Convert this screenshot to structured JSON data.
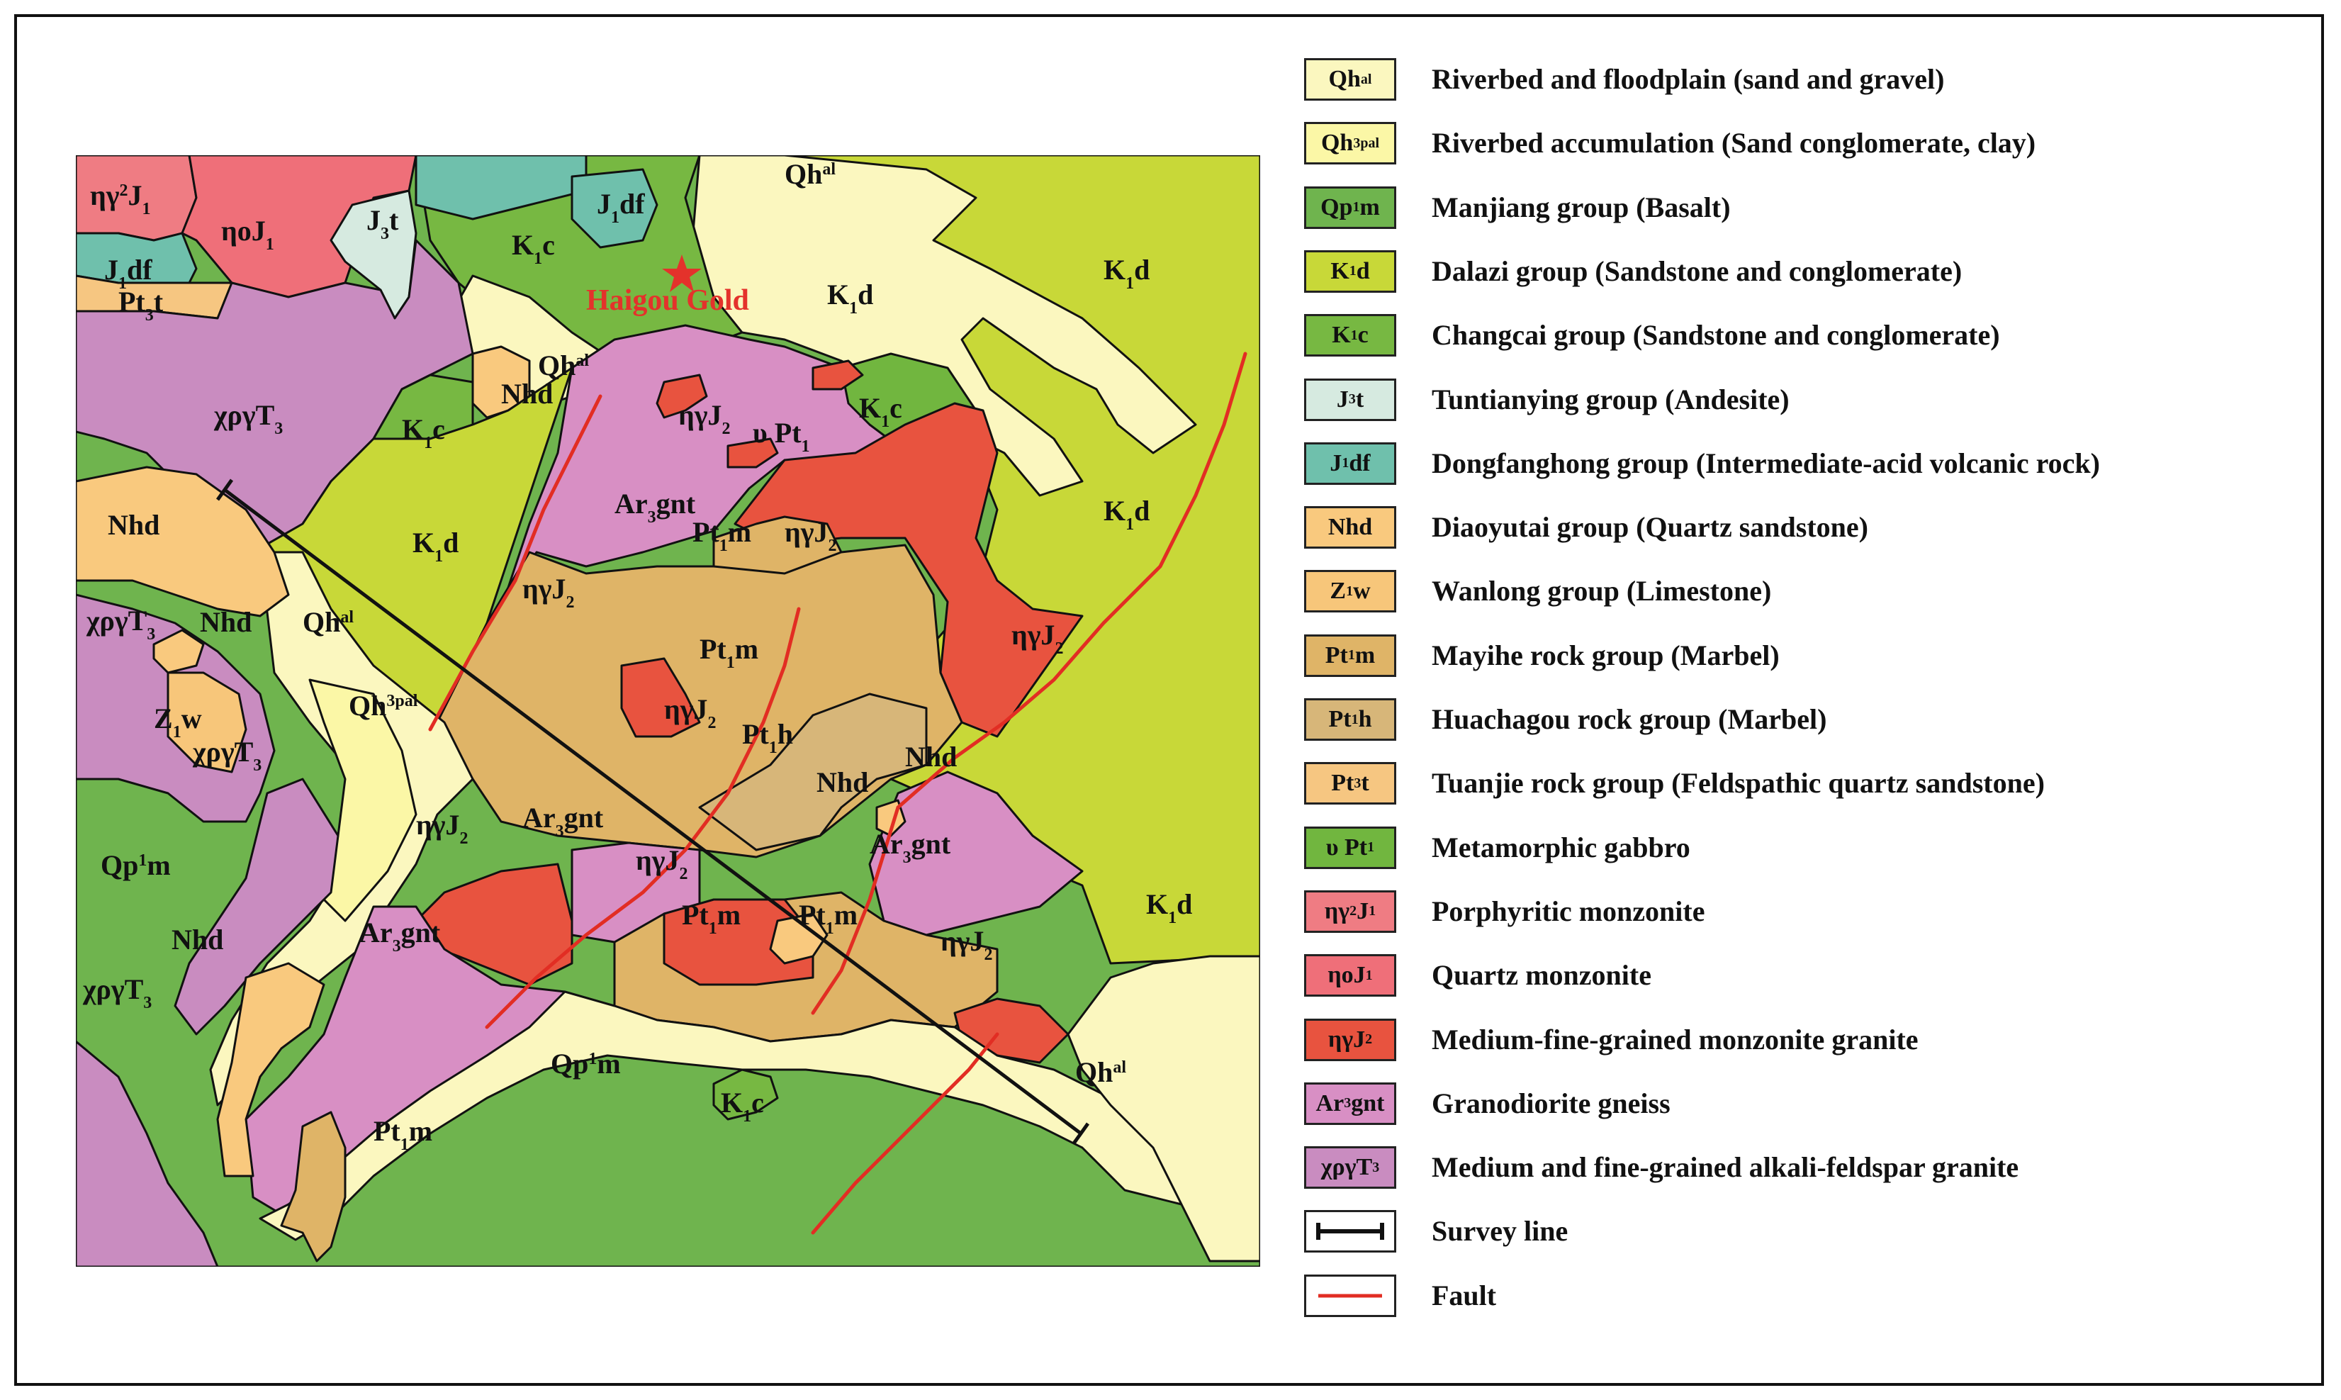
{
  "colors": {
    "Qhal": "#fbf7bf",
    "Qh3pal": "#fbf7a6",
    "Qp1m": "#6fb44e",
    "K1d": "#c8d838",
    "K1c": "#77b842",
    "J3t": "#d6eae0",
    "J1df": "#6fc0ac",
    "Nhd": "#f9c97e",
    "Z1w": "#f7c67a",
    "Pt1m": "#dfb467",
    "Pt1h": "#d7b679",
    "Pt3t": "#f6c681",
    "uPt1": "#71b63f",
    "ng2J1": "#ef7c83",
    "noJ1": "#ef6f79",
    "ngJ2": "#e8533f",
    "Ar3gnt": "#d88fc4",
    "xpgT3": "#c98cc0",
    "survey": "#111111",
    "fault": "#e22d23",
    "star": "#e4322b"
  },
  "map": {
    "mine_label": "Haigou Gold",
    "labels": [
      {
        "key": "ng2J1_a",
        "base": "ηγ",
        "sup": "2",
        "rest": "J",
        "sub": "1"
      },
      {
        "key": "noJ1_a",
        "base": "ηoJ",
        "sub": "1"
      },
      {
        "key": "J3t_a",
        "base": "J",
        "sub": "3",
        "rest": "t"
      },
      {
        "key": "K1c_a",
        "base": "K",
        "sub": "1",
        "rest": "c"
      },
      {
        "key": "J1df_a",
        "base": "J",
        "sub": "1",
        "rest": "df"
      },
      {
        "key": "Qhal_a",
        "base": "Qh",
        "sup": "al"
      },
      {
        "key": "J1df_b",
        "base": "J",
        "sub": "1",
        "rest": "df"
      },
      {
        "key": "Pt3t_a",
        "base": "Pt",
        "sub": "3",
        "rest": "t"
      },
      {
        "key": "K1d_a",
        "base": "K",
        "sub": "1",
        "rest": "d"
      },
      {
        "key": "K1d_b",
        "base": "K",
        "sub": "1",
        "rest": "d"
      },
      {
        "key": "Qhal_b",
        "base": "Qh",
        "sup": "al"
      },
      {
        "key": "xpgT3_a",
        "base": "χργT",
        "sub": "3"
      },
      {
        "key": "K1c_b",
        "base": "K",
        "sub": "1",
        "rest": "c"
      },
      {
        "key": "Nhd_a",
        "base": "Nhd"
      },
      {
        "key": "ngJ2_a",
        "base": "ηγJ",
        "sub": "2"
      },
      {
        "key": "uPt1_a",
        "base": "υ Pt",
        "sub": "1"
      },
      {
        "key": "K1c_c",
        "base": "K",
        "sub": "1",
        "rest": "c"
      },
      {
        "key": "Nhd_b",
        "base": "Nhd"
      },
      {
        "key": "Ar3gnt_a",
        "base": "Ar",
        "sub": "3",
        "rest": "gnt"
      },
      {
        "key": "Pt1m_a",
        "base": "Pt",
        "sub": "1",
        "rest": "m"
      },
      {
        "key": "ngJ2_b",
        "base": "ηγJ",
        "sub": "2"
      },
      {
        "key": "K1d_c",
        "base": "K",
        "sub": "1",
        "rest": "d"
      },
      {
        "key": "K1d_d",
        "base": "K",
        "sub": "1",
        "rest": "d"
      },
      {
        "key": "xpgT3_b",
        "base": "χργT",
        "sub": "3"
      },
      {
        "key": "Nhd_c",
        "base": "Nhd"
      },
      {
        "key": "Qhal_c",
        "base": "Qh",
        "sup": "al"
      },
      {
        "key": "ngJ2_c",
        "base": "ηγJ",
        "sub": "2"
      },
      {
        "key": "Pt1m_b",
        "base": "Pt",
        "sub": "1",
        "rest": "m"
      },
      {
        "key": "ngJ2_d",
        "base": "ηγJ",
        "sub": "2"
      },
      {
        "key": "Z1w_a",
        "base": "Z",
        "sub": "1",
        "rest": "w"
      },
      {
        "key": "Qh3pal_a",
        "base": "Qh",
        "sup": "3pal"
      },
      {
        "key": "xpgT3_c",
        "base": "χργT",
        "sub": "3"
      },
      {
        "key": "ngJ2_e",
        "base": "ηγJ",
        "sub": "2"
      },
      {
        "key": "Pt1h_a",
        "base": "Pt",
        "sub": "1",
        "rest": "h"
      },
      {
        "key": "Nhd_d",
        "base": "Nhd"
      },
      {
        "key": "ngJ2_f",
        "base": "ηγJ",
        "sub": "2"
      },
      {
        "key": "Ar3gnt_b",
        "base": "Ar",
        "sub": "3",
        "rest": "gnt"
      },
      {
        "key": "Nhd_e",
        "base": "Nhd"
      },
      {
        "key": "Ar3gnt_c",
        "base": "Ar",
        "sub": "3",
        "rest": "gnt"
      },
      {
        "key": "Qp1m_a",
        "base": "Qp",
        "sup": "1",
        "rest": "m"
      },
      {
        "key": "ngJ2_g",
        "base": "ηγJ",
        "sub": "2"
      },
      {
        "key": "Pt1m_c",
        "base": "Pt",
        "sub": "1",
        "rest": "m"
      },
      {
        "key": "Pt1m_d",
        "base": "Pt",
        "sub": "1",
        "rest": "m"
      },
      {
        "key": "K1d_e",
        "base": "K",
        "sub": "1",
        "rest": "d"
      },
      {
        "key": "Nhd_f",
        "base": "Nhd"
      },
      {
        "key": "Ar3gnt_d",
        "base": "Ar",
        "sub": "3",
        "rest": "gnt"
      },
      {
        "key": "ngJ2_h",
        "base": "ηγJ",
        "sub": "2"
      },
      {
        "key": "xpgT3_d",
        "base": "χργT",
        "sub": "3"
      },
      {
        "key": "Qp1m_b",
        "base": "Qp",
        "sup": "1",
        "rest": "m"
      },
      {
        "key": "K1c_d",
        "base": "K",
        "sub": "1",
        "rest": "c"
      },
      {
        "key": "Qhal_d",
        "base": "Qh",
        "sup": "al"
      },
      {
        "key": "Pt1m_e",
        "base": "Pt",
        "sub": "1",
        "rest": "m"
      }
    ]
  },
  "legend": [
    {
      "code": "Qhal",
      "sym": {
        "base": "Qh",
        "sup": "al"
      },
      "text": "Riverbed and floodplain (sand and gravel)"
    },
    {
      "code": "Qh3pal",
      "sym": {
        "base": "Qh",
        "sup": "3pal"
      },
      "text": "Riverbed accumulation (Sand conglomerate, clay)"
    },
    {
      "code": "Qp1m",
      "sym": {
        "base": "Qp",
        "sup": "1",
        "rest": "m"
      },
      "text": "Manjiang group (Basalt)"
    },
    {
      "code": "K1d",
      "sym": {
        "base": "K",
        "sub": "1",
        "rest": "d"
      },
      "text": "Dalazi group (Sandstone and conglomerate)"
    },
    {
      "code": "K1c",
      "sym": {
        "base": "K",
        "sub": "1",
        "rest": "c"
      },
      "text": "Changcai group (Sandstone and conglomerate)"
    },
    {
      "code": "J3t",
      "sym": {
        "base": "J",
        "sub": "3",
        "rest": "t"
      },
      "text": "Tuntianying group (Andesite)"
    },
    {
      "code": "J1df",
      "sym": {
        "base": "J",
        "sub": "1",
        "rest": "df"
      },
      "text": "Dongfanghong group (Intermediate-acid volcanic rock)"
    },
    {
      "code": "Nhd",
      "sym": {
        "base": "Nhd"
      },
      "text": "Diaoyutai  group (Quartz sandstone)"
    },
    {
      "code": "Z1w",
      "sym": {
        "base": "Z",
        "sub": "1",
        "rest": "w"
      },
      "text": "Wanlong  group (Limestone)"
    },
    {
      "code": "Pt1m",
      "sym": {
        "base": "Pt",
        "sub": "1",
        "rest": "m"
      },
      "text": "Mayihe  rock group (Marbel)"
    },
    {
      "code": "Pt1h",
      "sym": {
        "base": "Pt",
        "sub": "1",
        "rest": "h"
      },
      "text": "Huachagou  rock group (Marbel)"
    },
    {
      "code": "Pt3t",
      "sym": {
        "base": "Pt",
        "sub": "3",
        "rest": "t"
      },
      "text": "Tuanjie rock group (Feldspathic quartz sandstone)"
    },
    {
      "code": "uPt1",
      "sym": {
        "base": "υ Pt",
        "sub": "1"
      },
      "text": "Metamorphic gabbro"
    },
    {
      "code": "ng2J1",
      "sym": {
        "base": "ηγ",
        "sup": "2",
        "rest": "J",
        "sub": "1"
      },
      "text": "Porphyritic monzonite"
    },
    {
      "code": "noJ1",
      "sym": {
        "base": "ηoJ",
        "sub": "1"
      },
      "text": "Quartz monzonite"
    },
    {
      "code": "ngJ2",
      "sym": {
        "base": "ηγJ",
        "sub": "2"
      },
      "text": "Medium-fine-grained monzonite granite"
    },
    {
      "code": "Ar3gnt",
      "sym": {
        "base": "Ar",
        "sub": "3",
        "rest": "gnt"
      },
      "text": "Granodiorite gneiss"
    },
    {
      "code": "xpgT3",
      "sym": {
        "base": "χργT",
        "sub": "3"
      },
      "text": "Medium and fine-grained alkali-feldspar granite"
    },
    {
      "code": "survey",
      "sym": null,
      "text": "Survey line"
    },
    {
      "code": "fault",
      "sym": null,
      "text": "Fault"
    }
  ]
}
